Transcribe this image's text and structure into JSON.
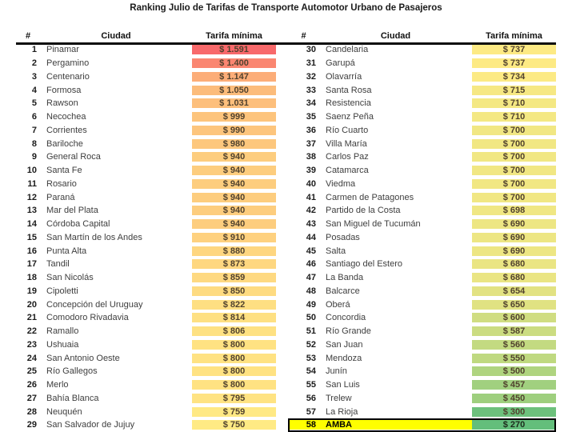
{
  "chart_data": {
    "type": "table",
    "title": "Ranking Julio de Tarifas de Transporte Automotor Urbano de Pasajeros",
    "columns": {
      "rank": "#",
      "city": "Ciudad",
      "tariff": "Tarifa mínima"
    },
    "color_scale": {
      "min_value": 270,
      "mid_value": 743.5,
      "max_value": 1591,
      "min_color": "#63BE7B",
      "mid_color": "#FFEB84",
      "max_color": "#F8696B"
    },
    "highlight": {
      "row_rank": 58,
      "fill_color": "#FFFF00",
      "border_color": "#000000"
    },
    "left_rows": [
      {
        "rank": 1,
        "city": "Pinamar",
        "tariff": 1591,
        "label": "$ 1.591"
      },
      {
        "rank": 2,
        "city": "Pergamino",
        "tariff": 1400,
        "label": "$ 1.400"
      },
      {
        "rank": 3,
        "city": "Centenario",
        "tariff": 1147,
        "label": "$ 1.147"
      },
      {
        "rank": 4,
        "city": "Formosa",
        "tariff": 1050,
        "label": "$ 1.050"
      },
      {
        "rank": 5,
        "city": "Rawson",
        "tariff": 1031,
        "label": "$ 1.031"
      },
      {
        "rank": 6,
        "city": "Necochea",
        "tariff": 999,
        "label": "$ 999"
      },
      {
        "rank": 7,
        "city": "Corrientes",
        "tariff": 990,
        "label": "$ 990"
      },
      {
        "rank": 8,
        "city": "Bariloche",
        "tariff": 980,
        "label": "$ 980"
      },
      {
        "rank": 9,
        "city": "General Roca",
        "tariff": 940,
        "label": "$ 940"
      },
      {
        "rank": 10,
        "city": "Santa Fe",
        "tariff": 940,
        "label": "$ 940"
      },
      {
        "rank": 11,
        "city": "Rosario",
        "tariff": 940,
        "label": "$ 940"
      },
      {
        "rank": 12,
        "city": "Paraná",
        "tariff": 940,
        "label": "$ 940"
      },
      {
        "rank": 13,
        "city": "Mar del Plata",
        "tariff": 940,
        "label": "$ 940"
      },
      {
        "rank": 14,
        "city": "Córdoba Capital",
        "tariff": 940,
        "label": "$ 940"
      },
      {
        "rank": 15,
        "city": "San Martín de los Andes",
        "tariff": 910,
        "label": "$ 910"
      },
      {
        "rank": 16,
        "city": "Punta Alta",
        "tariff": 880,
        "label": "$ 880"
      },
      {
        "rank": 17,
        "city": "Tandil",
        "tariff": 873,
        "label": "$ 873"
      },
      {
        "rank": 18,
        "city": "San Nicolás",
        "tariff": 859,
        "label": "$ 859"
      },
      {
        "rank": 19,
        "city": "Cipoletti",
        "tariff": 850,
        "label": "$ 850"
      },
      {
        "rank": 20,
        "city": "Concepción del Uruguay",
        "tariff": 822,
        "label": "$ 822"
      },
      {
        "rank": 21,
        "city": "Comodoro Rivadavia",
        "tariff": 814,
        "label": "$ 814"
      },
      {
        "rank": 22,
        "city": "Ramallo",
        "tariff": 806,
        "label": "$ 806"
      },
      {
        "rank": 23,
        "city": "Ushuaia",
        "tariff": 800,
        "label": "$ 800"
      },
      {
        "rank": 24,
        "city": "San Antonio Oeste",
        "tariff": 800,
        "label": "$ 800"
      },
      {
        "rank": 25,
        "city": "Río Gallegos",
        "tariff": 800,
        "label": "$ 800"
      },
      {
        "rank": 26,
        "city": "Merlo",
        "tariff": 800,
        "label": "$ 800"
      },
      {
        "rank": 27,
        "city": "Bahía Blanca",
        "tariff": 795,
        "label": "$ 795"
      },
      {
        "rank": 28,
        "city": "Neuquén",
        "tariff": 759,
        "label": "$ 759"
      },
      {
        "rank": 29,
        "city": "San Salvador de Jujuy",
        "tariff": 750,
        "label": "$ 750"
      }
    ],
    "right_rows": [
      {
        "rank": 30,
        "city": "Candelaria",
        "tariff": 737,
        "label": "$ 737"
      },
      {
        "rank": 31,
        "city": "Garupá",
        "tariff": 737,
        "label": "$ 737"
      },
      {
        "rank": 32,
        "city": "Olavarría",
        "tariff": 734,
        "label": "$ 734"
      },
      {
        "rank": 33,
        "city": "Santa Rosa",
        "tariff": 715,
        "label": "$ 715"
      },
      {
        "rank": 34,
        "city": "Resistencia",
        "tariff": 710,
        "label": "$ 710"
      },
      {
        "rank": 35,
        "city": "Saenz Peña",
        "tariff": 710,
        "label": "$ 710"
      },
      {
        "rank": 36,
        "city": "Río Cuarto",
        "tariff": 700,
        "label": "$ 700"
      },
      {
        "rank": 37,
        "city": "Villa María",
        "tariff": 700,
        "label": "$ 700"
      },
      {
        "rank": 38,
        "city": "Carlos Paz",
        "tariff": 700,
        "label": "$ 700"
      },
      {
        "rank": 39,
        "city": "Catamarca",
        "tariff": 700,
        "label": "$ 700"
      },
      {
        "rank": 40,
        "city": "Viedma",
        "tariff": 700,
        "label": "$ 700"
      },
      {
        "rank": 41,
        "city": "Carmen de Patagones",
        "tariff": 700,
        "label": "$ 700"
      },
      {
        "rank": 42,
        "city": "Partido de la Costa",
        "tariff": 698,
        "label": "$ 698"
      },
      {
        "rank": 43,
        "city": "San Miguel de Tucumán",
        "tariff": 690,
        "label": "$ 690"
      },
      {
        "rank": 44,
        "city": "Posadas",
        "tariff": 690,
        "label": "$ 690"
      },
      {
        "rank": 45,
        "city": "Salta",
        "tariff": 690,
        "label": "$ 690"
      },
      {
        "rank": 46,
        "city": "Santiago del Estero",
        "tariff": 680,
        "label": "$ 680"
      },
      {
        "rank": 47,
        "city": "La Banda",
        "tariff": 680,
        "label": "$ 680"
      },
      {
        "rank": 48,
        "city": "Balcarce",
        "tariff": 654,
        "label": "$ 654"
      },
      {
        "rank": 49,
        "city": "Oberá",
        "tariff": 650,
        "label": "$ 650"
      },
      {
        "rank": 50,
        "city": "Concordia",
        "tariff": 600,
        "label": "$ 600"
      },
      {
        "rank": 51,
        "city": "Río Grande",
        "tariff": 587,
        "label": "$ 587"
      },
      {
        "rank": 52,
        "city": "San Juan",
        "tariff": 560,
        "label": "$ 560"
      },
      {
        "rank": 53,
        "city": "Mendoza",
        "tariff": 550,
        "label": "$ 550"
      },
      {
        "rank": 54,
        "city": "Junín",
        "tariff": 500,
        "label": "$ 500"
      },
      {
        "rank": 55,
        "city": "San Luis",
        "tariff": 457,
        "label": "$ 457"
      },
      {
        "rank": 56,
        "city": "Trelew",
        "tariff": 450,
        "label": "$ 450"
      },
      {
        "rank": 57,
        "city": "La Rioja",
        "tariff": 300,
        "label": "$ 300"
      },
      {
        "rank": 58,
        "city": "AMBA",
        "tariff": 270,
        "label": "$ 270"
      }
    ]
  }
}
